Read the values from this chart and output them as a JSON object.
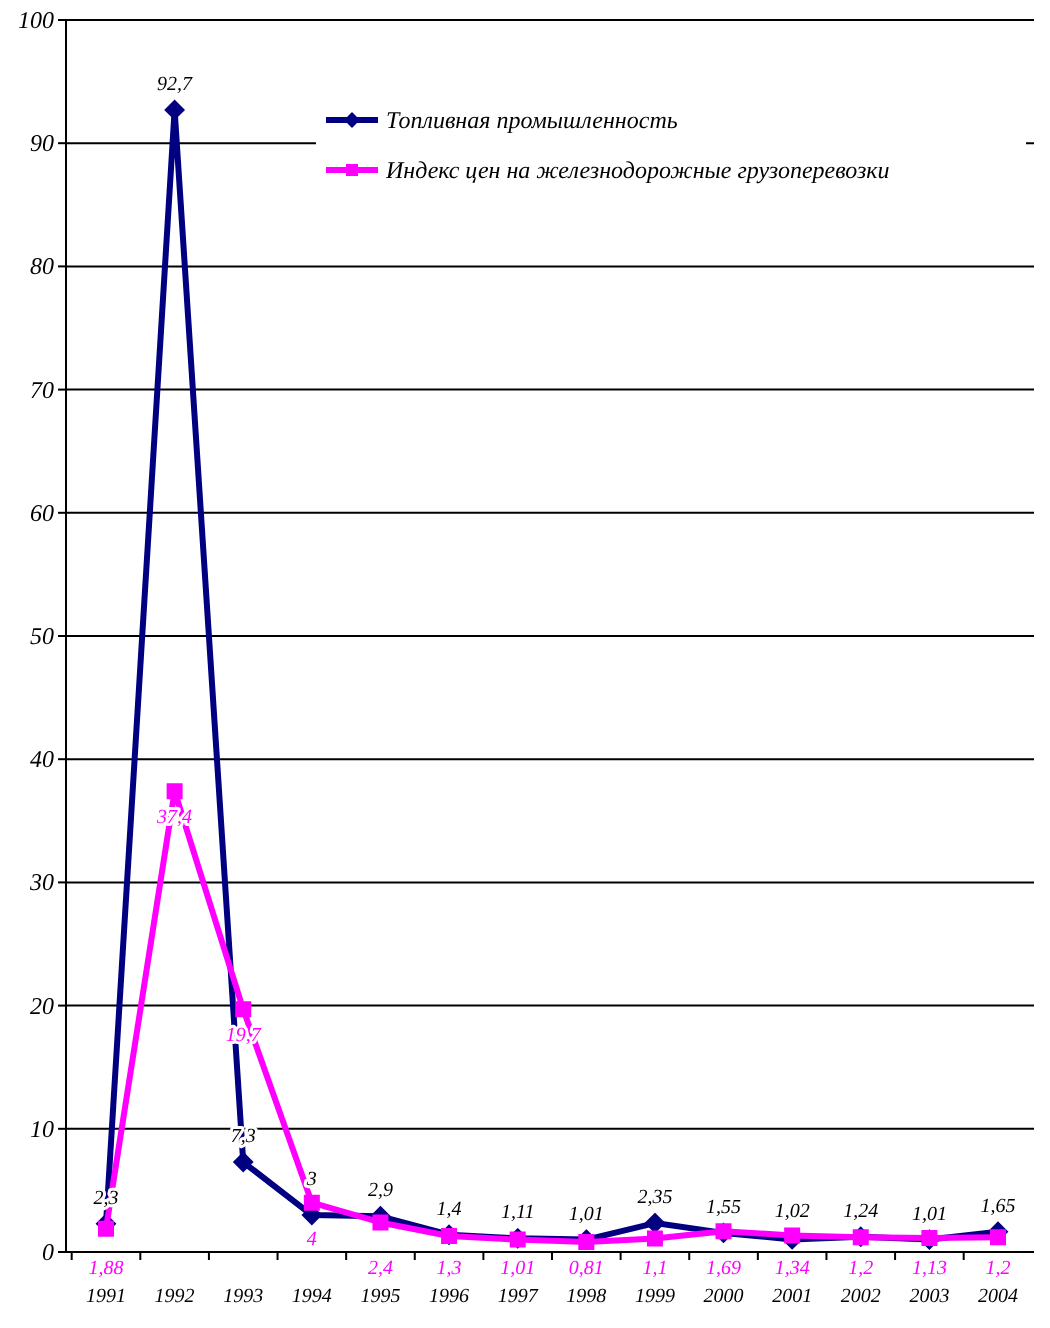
{
  "chart_data": {
    "type": "line",
    "categories": [
      "1991",
      "1992",
      "1993",
      "1994",
      "1995",
      "1996",
      "1997",
      "1998",
      "1999",
      "2000",
      "2001",
      "2002",
      "2003",
      "2004"
    ],
    "ylim": [
      0,
      100
    ],
    "yticks": [
      0,
      10,
      20,
      30,
      40,
      50,
      60,
      70,
      80,
      90,
      100
    ],
    "grid": "y",
    "legend": "top right",
    "marker": "diamond",
    "line_style": "solid",
    "series": [
      {
        "name": "Топливная промышленность",
        "color": "#000080",
        "marker": "diamond",
        "values": [
          2.3,
          92.7,
          7.3,
          3,
          2.9,
          1.4,
          1.11,
          1.01,
          2.35,
          1.55,
          1.02,
          1.24,
          1.01,
          1.65
        ],
        "value_labels": [
          "2,3",
          "92,7",
          "7,3",
          "3",
          "2,9",
          "1,4",
          "1,11",
          "1,01",
          "2,35",
          "1,55",
          "1,02",
          "1,24",
          "1,01",
          "1,65"
        ]
      },
      {
        "name": "Индекс цен на железнодорожные грузоперевозки",
        "color": "#ff00ff",
        "marker": "square",
        "values": [
          1.88,
          37.4,
          19.7,
          4,
          2.4,
          1.3,
          1.01,
          0.81,
          1.1,
          1.69,
          1.34,
          1.2,
          1.13,
          1.2
        ],
        "value_labels": [
          "1,88",
          "37,4",
          "19,7",
          "4",
          "2,4",
          "1,3",
          "1,01",
          "0,81",
          "1,1",
          "1,69",
          "1,34",
          "1,2",
          "1,13",
          "1,2"
        ]
      }
    ]
  }
}
